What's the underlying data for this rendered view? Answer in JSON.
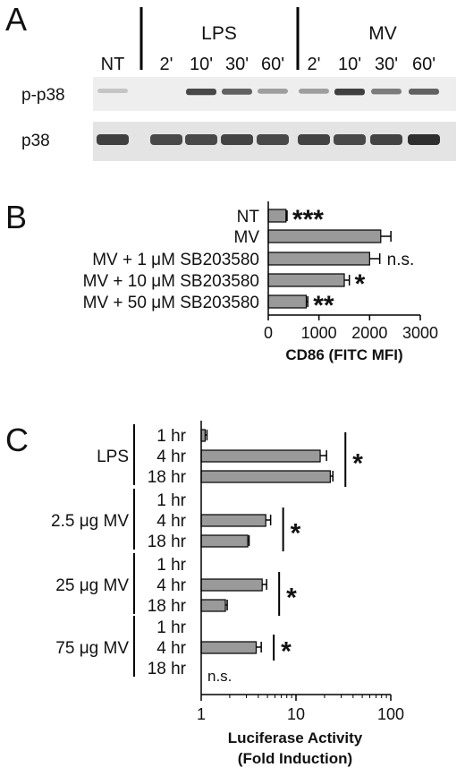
{
  "panel_labels": [
    "A",
    "B",
    "C"
  ],
  "blot": {
    "type": "western-blot",
    "lanes": [
      "NT",
      "2'",
      "10'",
      "30'",
      "60'",
      "2'",
      "10'",
      "30'",
      "60'"
    ],
    "groups": [
      "LPS",
      "MV"
    ],
    "rows": [
      "p-p38",
      "p38"
    ],
    "intensity_p_p38": [
      0.02,
      0.0,
      0.75,
      0.6,
      0.25,
      0.25,
      0.8,
      0.45,
      0.6
    ],
    "intensity_p38": [
      0.8,
      0.75,
      0.75,
      0.78,
      0.75,
      0.78,
      0.75,
      0.78,
      0.9
    ]
  },
  "chart_data": [
    {
      "type": "bar",
      "orientation": "horizontal",
      "categories": [
        "NT",
        "MV",
        "MV + 1 μM SB203580",
        "MV + 10 μM SB203580",
        "MV + 50 μM SB203580"
      ],
      "values": [
        350,
        2220,
        2000,
        1500,
        750
      ],
      "errors": [
        20,
        200,
        200,
        100,
        30
      ],
      "significance": [
        "***",
        "",
        "n.s.",
        "*",
        "**"
      ],
      "xlabel": "CD86 (FITC MFI)",
      "xlim": [
        0,
        3000
      ],
      "xticks": [
        "0",
        "1000",
        "2000",
        "3000"
      ],
      "bar_color": "#9a9a9a"
    },
    {
      "type": "bar",
      "orientation": "horizontal",
      "x_scale": "log",
      "groups": [
        {
          "label": "LPS",
          "rows": [
            "1 hr",
            "4 hr",
            "18 hr"
          ],
          "values": [
            1.1,
            18,
            23
          ],
          "errors": [
            0.05,
            3,
            1.5
          ],
          "significance": "*"
        },
        {
          "label": "2.5 μg MV",
          "rows": [
            "1 hr",
            "4 hr",
            "18 hr"
          ],
          "values": [
            1.0,
            4.8,
            3.1
          ],
          "errors": [
            0,
            0.6,
            0.1
          ],
          "significance": "*"
        },
        {
          "label": "25 μg MV",
          "rows": [
            "1 hr",
            "4 hr",
            "18 hr"
          ],
          "values": [
            1.0,
            4.4,
            1.8
          ],
          "errors": [
            0,
            0.5,
            0.08
          ],
          "significance": "*"
        },
        {
          "label": "75 μg MV",
          "rows": [
            "1 hr",
            "4 hr",
            "18 hr"
          ],
          "values": [
            1.0,
            3.8,
            1.0
          ],
          "errors": [
            0,
            0.5,
            0
          ],
          "significance": "*"
        }
      ],
      "ns_label": "n.s.",
      "xlabel": "Luciferase Activity",
      "xlabel2": "(Fold Induction)",
      "xlim": [
        1,
        100
      ],
      "xticks": [
        "1",
        "10",
        "100"
      ],
      "bar_color": "#9a9a9a"
    }
  ]
}
